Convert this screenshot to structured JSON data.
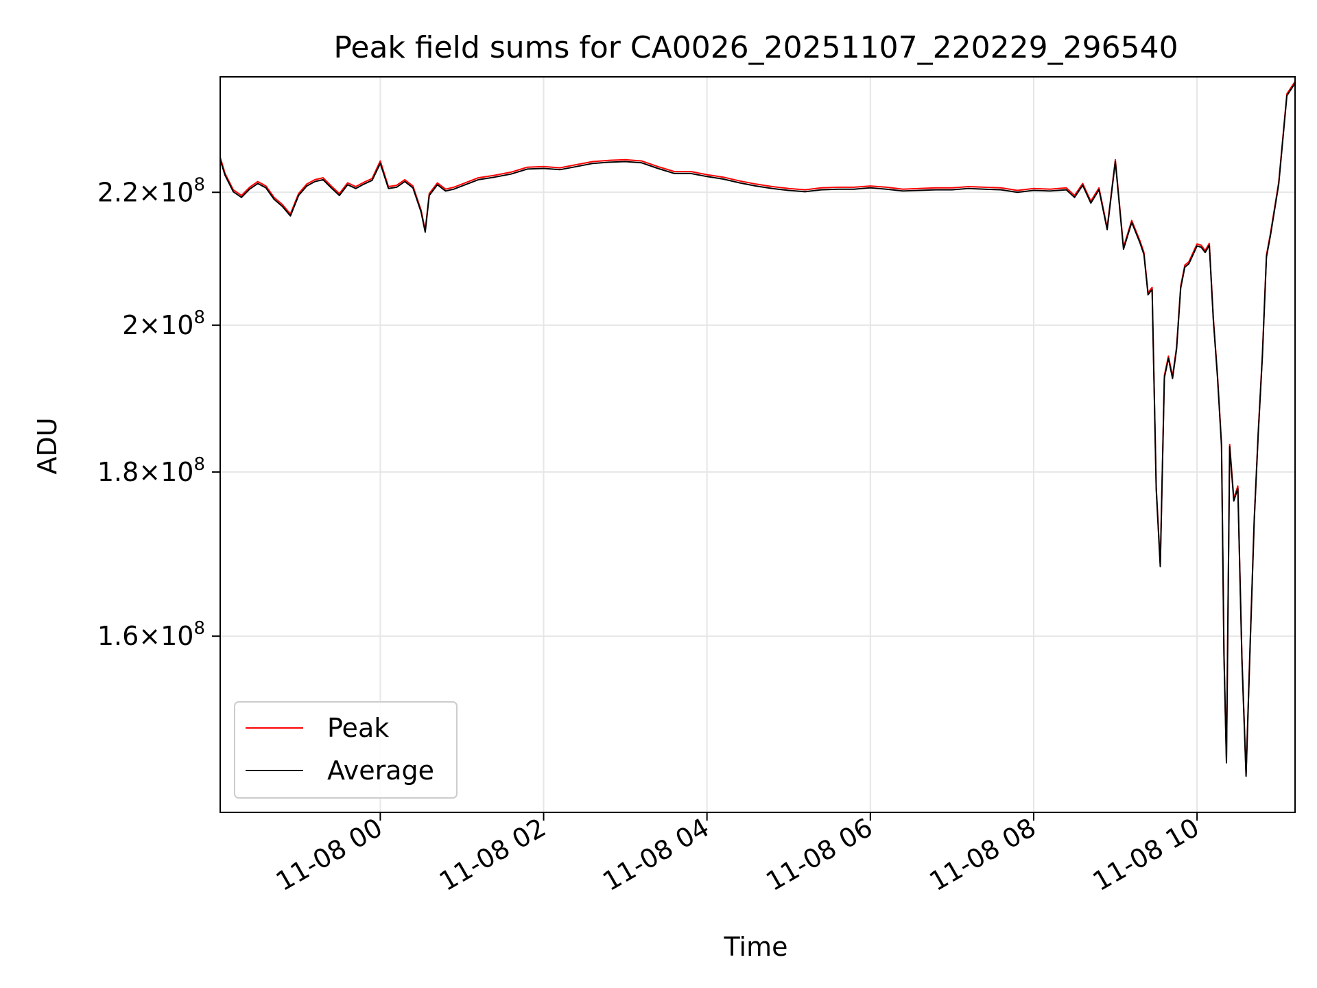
{
  "chart_data": {
    "type": "line",
    "title": "Peak field sums for CA0026_20251107_220229_296540",
    "xlabel": "Time",
    "ylabel": "ADU",
    "y_scale": "log",
    "ylim": [
      141000000,
      239000000
    ],
    "xlim_hours": [
      -1.96,
      11.2
    ],
    "grid": true,
    "legend_position": "lower-left",
    "x_ticks": [
      {
        "hour": 0,
        "label": "11-08 00"
      },
      {
        "hour": 2,
        "label": "11-08 02"
      },
      {
        "hour": 4,
        "label": "11-08 04"
      },
      {
        "hour": 6,
        "label": "11-08 06"
      },
      {
        "hour": 8,
        "label": "11-08 08"
      },
      {
        "hour": 10,
        "label": "11-08 10"
      }
    ],
    "y_ticks": [
      {
        "value": 220000000,
        "mantissa": "2.2",
        "exponent": "8"
      },
      {
        "value": 200000000,
        "mantissa": "2",
        "exponent": "8"
      },
      {
        "value": 180000000,
        "mantissa": "1.8",
        "exponent": "8"
      },
      {
        "value": 160000000,
        "mantissa": "1.6",
        "exponent": "8"
      }
    ],
    "times_symbol": "×",
    "tick_base": "10",
    "x_hours": [
      -1.96,
      -1.9,
      -1.8,
      -1.7,
      -1.6,
      -1.5,
      -1.4,
      -1.3,
      -1.2,
      -1.1,
      -1.0,
      -0.9,
      -0.8,
      -0.7,
      -0.6,
      -0.5,
      -0.4,
      -0.3,
      -0.2,
      -0.1,
      0.0,
      0.1,
      0.2,
      0.3,
      0.4,
      0.5,
      0.55,
      0.6,
      0.7,
      0.8,
      0.9,
      1.0,
      1.2,
      1.4,
      1.6,
      1.8,
      2.0,
      2.2,
      2.4,
      2.6,
      2.8,
      3.0,
      3.2,
      3.4,
      3.6,
      3.8,
      4.0,
      4.2,
      4.4,
      4.6,
      4.8,
      5.0,
      5.2,
      5.4,
      5.6,
      5.8,
      6.0,
      6.2,
      6.4,
      6.6,
      6.8,
      7.0,
      7.2,
      7.4,
      7.6,
      7.8,
      8.0,
      8.2,
      8.4,
      8.5,
      8.6,
      8.7,
      8.8,
      8.9,
      9.0,
      9.1,
      9.2,
      9.3,
      9.35,
      9.4,
      9.45,
      9.5,
      9.55,
      9.6,
      9.65,
      9.7,
      9.75,
      9.8,
      9.85,
      9.9,
      10.0,
      10.05,
      10.1,
      10.15,
      10.2,
      10.25,
      10.3,
      10.33,
      10.36,
      10.4,
      10.45,
      10.5,
      10.55,
      10.6,
      10.65,
      10.7,
      10.75,
      10.8,
      10.85,
      10.9,
      11.0,
      11.1,
      11.2
    ],
    "series": [
      {
        "name": "Peak",
        "color": "#ff0000",
        "values": [
          225600000,
          223000000,
          220400000,
          219500000,
          220800000,
          221700000,
          221000000,
          219200000,
          218100000,
          216600000,
          219800000,
          221300000,
          222000000,
          222300000,
          221000000,
          219800000,
          221500000,
          220900000,
          221600000,
          222200000,
          225000000,
          220900000,
          221100000,
          222000000,
          221000000,
          217200000,
          214100000,
          219800000,
          221500000,
          220500000,
          220800000,
          221300000,
          222300000,
          222700000,
          223200000,
          224000000,
          224100000,
          223900000,
          224400000,
          224900000,
          225100000,
          225200000,
          225000000,
          224100000,
          223300000,
          223300000,
          222800000,
          222400000,
          221800000,
          221300000,
          220900000,
          220600000,
          220400000,
          220700000,
          220800000,
          220800000,
          221000000,
          220800000,
          220500000,
          220600000,
          220700000,
          220700000,
          220900000,
          220800000,
          220700000,
          220300000,
          220600000,
          220500000,
          220700000,
          219500000,
          221400000,
          218600000,
          220700000,
          214500000,
          225200000,
          211500000,
          215600000,
          212500000,
          210700000,
          204700000,
          205500000,
          178100000,
          168500000,
          192900000,
          195600000,
          192800000,
          196900000,
          205700000,
          208800000,
          209300000,
          212000000,
          211800000,
          211000000,
          212100000,
          201000000,
          193000000,
          183700000,
          158000000,
          146400000,
          183600000,
          176600000,
          178200000,
          157500000,
          145000000,
          159100000,
          174100000,
          185400000,
          195900000,
          210300000,
          213700000,
          221600000,
          236100000,
          238200000
        ]
      },
      {
        "name": "Average",
        "color": "#000000",
        "values": [
          225200000,
          222700000,
          220100000,
          219200000,
          220500000,
          221400000,
          220700000,
          218900000,
          217800000,
          216300000,
          219500000,
          221000000,
          221700000,
          222000000,
          220700000,
          219500000,
          221200000,
          220600000,
          221300000,
          221900000,
          224600000,
          220600000,
          220800000,
          221700000,
          220700000,
          216900000,
          213800000,
          219500000,
          221200000,
          220200000,
          220500000,
          221000000,
          222000000,
          222400000,
          222900000,
          223700000,
          223800000,
          223600000,
          224100000,
          224600000,
          224800000,
          224900000,
          224700000,
          223800000,
          223000000,
          223000000,
          222500000,
          222100000,
          221500000,
          221000000,
          220600000,
          220300000,
          220100000,
          220400000,
          220500000,
          220500000,
          220700000,
          220500000,
          220200000,
          220300000,
          220400000,
          220400000,
          220600000,
          220500000,
          220400000,
          220000000,
          220300000,
          220200000,
          220400000,
          219200000,
          221100000,
          218300000,
          220400000,
          214200000,
          224900000,
          211200000,
          215300000,
          212200000,
          210400000,
          204400000,
          205200000,
          177800000,
          168200000,
          192600000,
          195300000,
          192500000,
          196600000,
          205400000,
          208500000,
          209000000,
          211700000,
          211500000,
          210700000,
          211800000,
          200700000,
          192700000,
          183400000,
          157700000,
          146100000,
          183300000,
          176300000,
          177900000,
          157200000,
          144700000,
          158800000,
          173800000,
          185100000,
          195600000,
          210000000,
          213400000,
          221300000,
          235800000,
          237900000
        ]
      }
    ]
  }
}
